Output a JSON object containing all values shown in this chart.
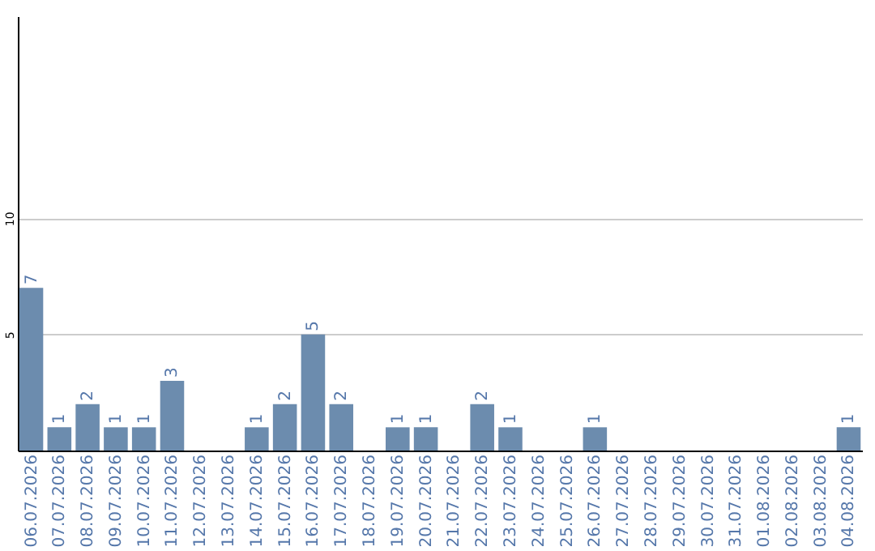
{
  "chart_data": {
    "type": "bar",
    "categories": [
      "06.07.2026",
      "07.07.2026",
      "08.07.2026",
      "09.07.2026",
      "10.07.2026",
      "11.07.2026",
      "12.07.2026",
      "13.07.2026",
      "14.07.2026",
      "15.07.2026",
      "16.07.2026",
      "17.07.2026",
      "18.07.2026",
      "19.07.2026",
      "20.07.2026",
      "21.07.2026",
      "22.07.2026",
      "23.07.2026",
      "24.07.2026",
      "25.07.2026",
      "26.07.2026",
      "27.07.2026",
      "28.07.2026",
      "29.07.2026",
      "30.07.2026",
      "31.07.2026",
      "01.08.2026",
      "02.08.2026",
      "03.08.2026",
      "04.08.2026"
    ],
    "values": [
      7,
      1,
      2,
      1,
      1,
      3,
      0,
      0,
      1,
      2,
      5,
      2,
      0,
      1,
      1,
      0,
      2,
      1,
      0,
      0,
      1,
      0,
      0,
      0,
      0,
      0,
      0,
      0,
      0,
      1
    ],
    "value_labels": [
      "7",
      "1",
      "2",
      "1",
      "1",
      "3",
      null,
      null,
      "1",
      "2",
      "5",
      "2",
      null,
      "1",
      "1",
      null,
      "2",
      "1",
      null,
      null,
      "1",
      null,
      null,
      null,
      null,
      null,
      null,
      null,
      null,
      "1"
    ],
    "color": "#6c8cae",
    "ylim": [
      0,
      18.7
    ],
    "yticks": [
      5,
      10
    ],
    "grid": "y"
  }
}
